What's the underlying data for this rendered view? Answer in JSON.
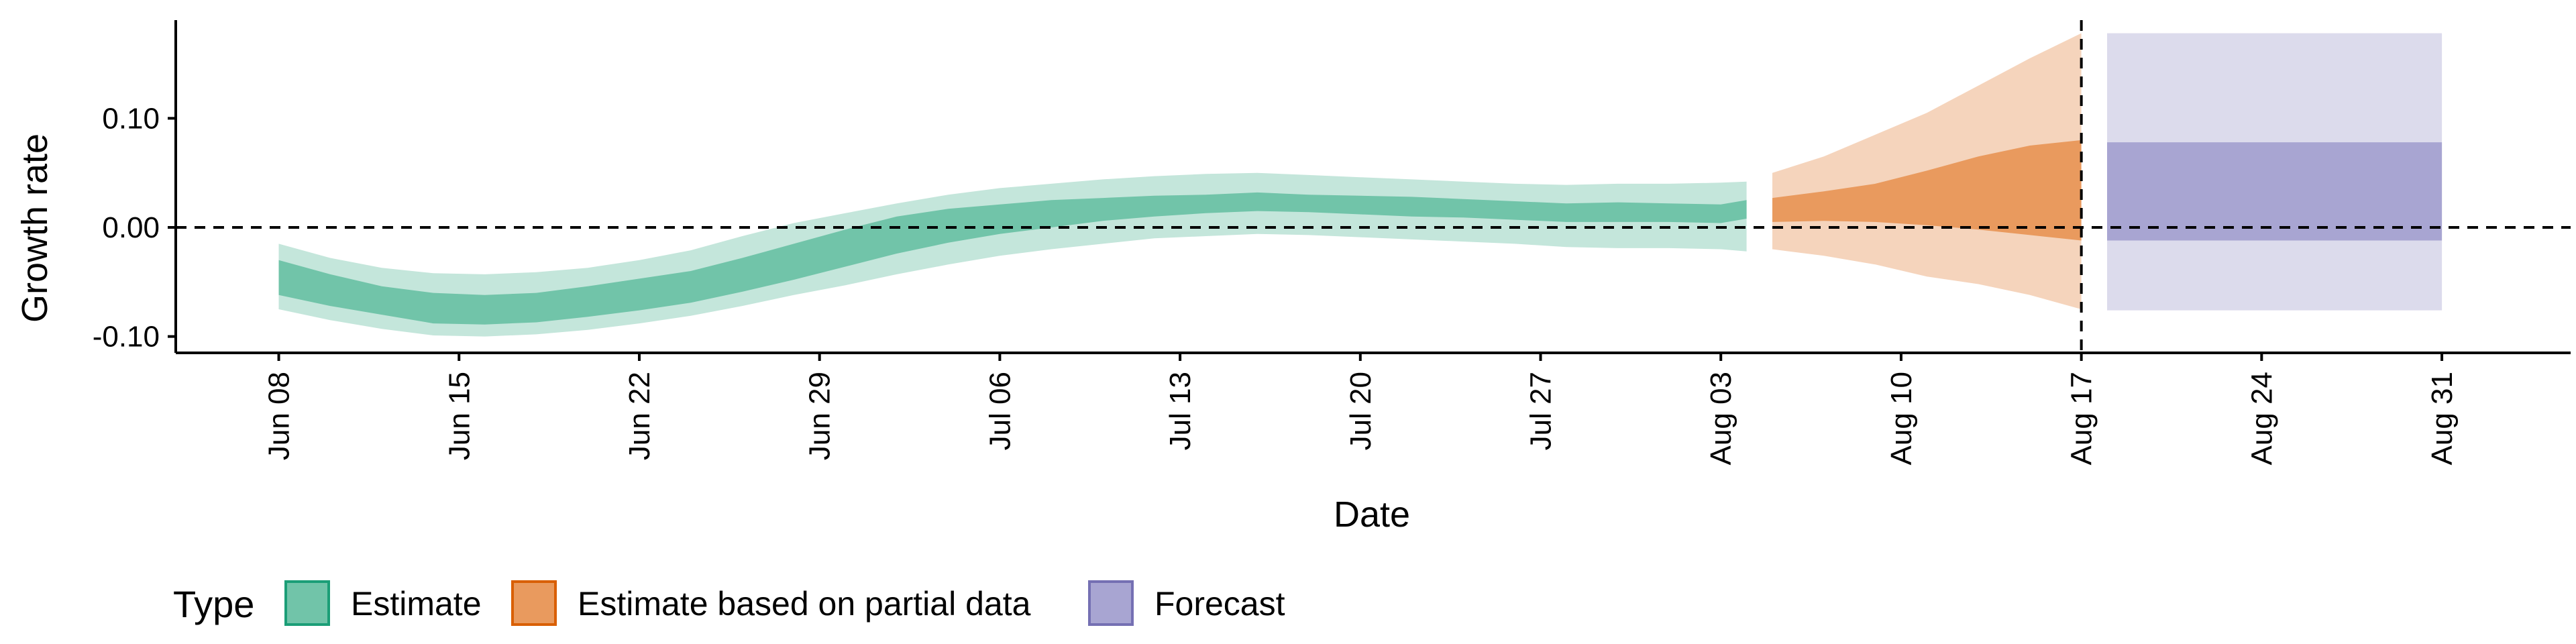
{
  "chart_data": {
    "type": "area",
    "xlabel": "Date",
    "ylabel": "Growth rate",
    "xlim": [
      "2020-06-04",
      "2020-09-05"
    ],
    "ylim": [
      -0.115,
      0.19
    ],
    "y_ticks": [
      0.1,
      0.0,
      -0.1
    ],
    "y_tick_labels": [
      "0.10",
      "0.00",
      "-0.10"
    ],
    "x_ticks": [
      "2020-06-08",
      "2020-06-15",
      "2020-06-22",
      "2020-06-29",
      "2020-07-06",
      "2020-07-13",
      "2020-07-20",
      "2020-07-27",
      "2020-08-03",
      "2020-08-10",
      "2020-08-17",
      "2020-08-24",
      "2020-08-31"
    ],
    "x_tick_labels": [
      "Jun 08",
      "Jun 15",
      "Jun 22",
      "Jun 29",
      "Jul 06",
      "Jul 13",
      "Jul 20",
      "Jul 27",
      "Aug 03",
      "Aug 10",
      "Aug 17",
      "Aug 24",
      "Aug 31"
    ],
    "reference_lines": {
      "horizontal_y": 0.0,
      "vertical_x": "2020-08-17"
    },
    "legend": {
      "title": "Type",
      "position": "bottom-left"
    },
    "series": [
      {
        "name": "Estimate",
        "color": "#1B9E77",
        "x": [
          "2020-06-08",
          "2020-06-10",
          "2020-06-12",
          "2020-06-14",
          "2020-06-16",
          "2020-06-18",
          "2020-06-20",
          "2020-06-22",
          "2020-06-24",
          "2020-06-26",
          "2020-06-28",
          "2020-06-30",
          "2020-07-02",
          "2020-07-04",
          "2020-07-06",
          "2020-07-08",
          "2020-07-10",
          "2020-07-12",
          "2020-07-14",
          "2020-07-16",
          "2020-07-18",
          "2020-07-20",
          "2020-07-22",
          "2020-07-24",
          "2020-07-26",
          "2020-07-28",
          "2020-07-30",
          "2020-08-01",
          "2020-08-03",
          "2020-08-04"
        ],
        "inner_lower": [
          -0.062,
          -0.072,
          -0.08,
          -0.088,
          -0.089,
          -0.087,
          -0.082,
          -0.076,
          -0.069,
          -0.059,
          -0.048,
          -0.036,
          -0.024,
          -0.014,
          -0.006,
          0.0,
          0.006,
          0.01,
          0.013,
          0.015,
          0.014,
          0.012,
          0.01,
          0.009,
          0.007,
          0.005,
          0.005,
          0.005,
          0.004,
          0.008
        ],
        "inner_upper": [
          -0.03,
          -0.043,
          -0.054,
          -0.06,
          -0.062,
          -0.06,
          -0.054,
          -0.047,
          -0.04,
          -0.028,
          -0.015,
          -0.002,
          0.01,
          0.017,
          0.021,
          0.025,
          0.027,
          0.029,
          0.03,
          0.032,
          0.03,
          0.029,
          0.028,
          0.026,
          0.024,
          0.022,
          0.023,
          0.022,
          0.021,
          0.025
        ],
        "outer_lower": [
          -0.075,
          -0.085,
          -0.093,
          -0.099,
          -0.1,
          -0.098,
          -0.094,
          -0.088,
          -0.081,
          -0.072,
          -0.062,
          -0.053,
          -0.043,
          -0.034,
          -0.026,
          -0.02,
          -0.015,
          -0.01,
          -0.008,
          -0.006,
          -0.007,
          -0.009,
          -0.011,
          -0.013,
          -0.015,
          -0.018,
          -0.019,
          -0.019,
          -0.02,
          -0.022
        ],
        "outer_upper": [
          -0.015,
          -0.028,
          -0.037,
          -0.042,
          -0.043,
          -0.041,
          -0.037,
          -0.03,
          -0.021,
          -0.008,
          0.004,
          0.013,
          0.022,
          0.03,
          0.036,
          0.04,
          0.044,
          0.047,
          0.049,
          0.05,
          0.048,
          0.046,
          0.044,
          0.042,
          0.04,
          0.039,
          0.04,
          0.04,
          0.041,
          0.042
        ]
      },
      {
        "name": "Estimate based on partial data",
        "color": "#D95F02",
        "x": [
          "2020-08-05",
          "2020-08-07",
          "2020-08-09",
          "2020-08-11",
          "2020-08-13",
          "2020-08-15",
          "2020-08-17"
        ],
        "inner_lower": [
          0.005,
          0.006,
          0.005,
          0.002,
          -0.002,
          -0.007,
          -0.012
        ],
        "inner_upper": [
          0.027,
          0.033,
          0.04,
          0.052,
          0.065,
          0.075,
          0.08
        ],
        "outer_lower": [
          -0.02,
          -0.026,
          -0.034,
          -0.045,
          -0.052,
          -0.062,
          -0.075
        ],
        "outer_upper": [
          0.05,
          0.065,
          0.085,
          0.105,
          0.13,
          0.155,
          0.178
        ]
      },
      {
        "name": "Forecast",
        "color": "#7570B3",
        "x": [
          "2020-08-18",
          "2020-08-31"
        ],
        "inner_lower": [
          -0.012,
          -0.012
        ],
        "inner_upper": [
          0.078,
          0.078
        ],
        "outer_lower": [
          -0.076,
          -0.076
        ],
        "outer_upper": [
          0.178,
          0.178
        ]
      }
    ]
  },
  "colors": {
    "estimate_inner": "#71C4A9",
    "estimate_outer": "#C4E6DB",
    "partial_inner": "#E99A5E",
    "partial_outer": "#F5D4BC",
    "forecast_inner": "#A8A5D2",
    "forecast_outer": "#DCDBEC"
  }
}
